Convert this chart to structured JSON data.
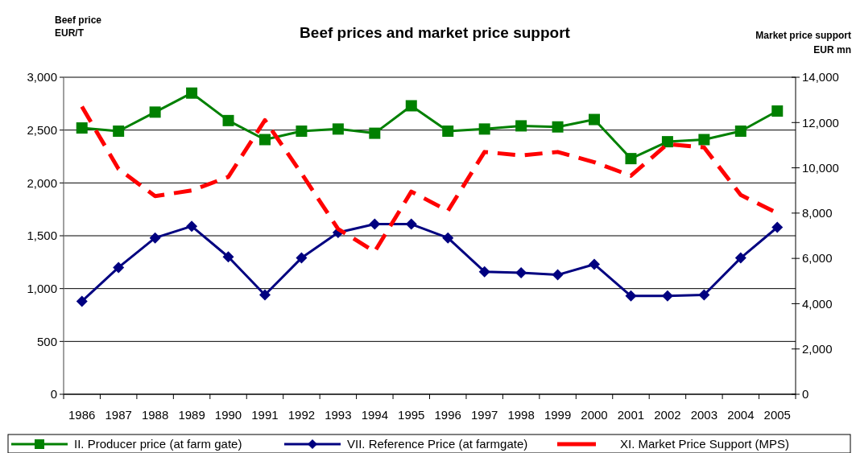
{
  "chart_data": {
    "type": "line",
    "title": "Beef prices and market price support",
    "ylabel": "Beef price\nEUR/T",
    "y2label": "Market price support\nEUR mn",
    "categories": [
      "1986",
      "1987",
      "1988",
      "1989",
      "1990",
      "1991",
      "1992",
      "1993",
      "1994",
      "1995",
      "1996",
      "1997",
      "1998",
      "1999",
      "2000",
      "2001",
      "2002",
      "2003",
      "2004",
      "2005"
    ],
    "ylim": [
      0,
      3000
    ],
    "yticks": [
      0,
      500,
      {
        "value": 1000,
        "label": "1,000"
      },
      {
        "value": 1500,
        "label": "1,500"
      },
      {
        "value": 2000,
        "label": "2,000"
      },
      {
        "value": 2500,
        "label": "2,500"
      },
      {
        "value": 3000,
        "label": "3,000"
      }
    ],
    "y2lim": [
      0,
      14000
    ],
    "y2ticks": [
      0,
      {
        "value": 2000,
        "label": "2,000"
      },
      {
        "value": 4000,
        "label": "4,000"
      },
      {
        "value": 6000,
        "label": "6,000"
      },
      {
        "value": 8000,
        "label": "8,000"
      },
      {
        "value": 10000,
        "label": "10,000"
      },
      {
        "value": 12000,
        "label": "12,000"
      },
      {
        "value": 14000,
        "label": "14,000"
      }
    ],
    "grid": "y",
    "legend": "bottom",
    "series": [
      {
        "name": "II. Producer price (at farm gate)",
        "color": "#008000",
        "marker": "square",
        "values": [
          2520,
          2490,
          2670,
          2850,
          2590,
          2410,
          2490,
          2510,
          2470,
          2730,
          2490,
          2510,
          2540,
          2530,
          2600,
          2230,
          2390,
          2410,
          2490,
          2680
        ]
      },
      {
        "name": "VII. Reference Price (at farmgate)",
        "color": "#000080",
        "marker": "diamond",
        "values": [
          880,
          1200,
          1480,
          1590,
          1300,
          940,
          1290,
          1530,
          1610,
          1610,
          1480,
          1160,
          1150,
          1130,
          1230,
          930,
          930,
          940,
          1290,
          1580
        ]
      },
      {
        "name": "XI. Market Price Support (MPS)",
        "color": "#ff0000",
        "axis": "y2",
        "line_style": "dashed",
        "marker": "none",
        "values": [
          12700,
          9950,
          8750,
          9000,
          9600,
          12100,
          9750,
          7300,
          6300,
          8950,
          8100,
          10700,
          10550,
          10700,
          10250,
          9650,
          11050,
          10900,
          8800,
          8000
        ]
      }
    ]
  }
}
